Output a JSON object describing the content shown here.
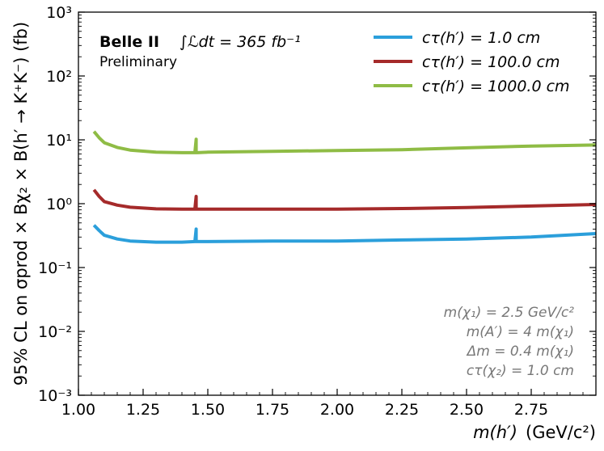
{
  "chart_data": {
    "type": "line",
    "xlabel_main": "m(h′)",
    "xlabel_unit": "(GeV/c²)",
    "ylabel": "95% CL on σprod × Bχ₂ × B(h′ → K⁺K⁻) (fb)",
    "xlim": [
      1.0,
      3.0
    ],
    "ylim": [
      0.001,
      1000
    ],
    "yscale": "log",
    "x_ticks": [
      "1.00",
      "1.25",
      "1.50",
      "1.75",
      "2.00",
      "2.25",
      "2.50",
      "2.75"
    ],
    "x_tick_values": [
      1.0,
      1.25,
      1.5,
      1.75,
      2.0,
      2.25,
      2.5,
      2.75
    ],
    "y_ticks": [
      "10⁻³",
      "10⁻²",
      "10⁻¹",
      "10⁰",
      "10¹",
      "10²",
      "10³"
    ],
    "y_tick_values": [
      0.001,
      0.01,
      0.1,
      1,
      10,
      100,
      1000
    ],
    "legend_position": "top-right",
    "series": [
      {
        "name": "cτ(h′) = 1.0 cm",
        "color": "#2b9fdb",
        "x": [
          1.06,
          1.08,
          1.1,
          1.15,
          1.2,
          1.3,
          1.4,
          1.45,
          1.455,
          1.455,
          1.46,
          1.5,
          1.75,
          2.0,
          2.25,
          2.5,
          2.75,
          3.0
        ],
        "y": [
          0.46,
          0.38,
          0.32,
          0.28,
          0.26,
          0.25,
          0.25,
          0.255,
          0.4,
          0.255,
          0.255,
          0.255,
          0.26,
          0.26,
          0.27,
          0.28,
          0.3,
          0.34
        ]
      },
      {
        "name": "cτ(h′) = 100.0 cm",
        "color": "#a52a2a",
        "x": [
          1.06,
          1.08,
          1.1,
          1.15,
          1.2,
          1.3,
          1.4,
          1.45,
          1.455,
          1.455,
          1.46,
          1.5,
          1.75,
          2.0,
          2.25,
          2.5,
          2.75,
          3.0
        ],
        "y": [
          1.65,
          1.3,
          1.08,
          0.95,
          0.88,
          0.83,
          0.82,
          0.82,
          1.3,
          0.82,
          0.82,
          0.82,
          0.82,
          0.82,
          0.84,
          0.87,
          0.92,
          0.97
        ]
      },
      {
        "name": "cτ(h′) = 1000.0 cm",
        "color": "#8fbc45",
        "x": [
          1.06,
          1.08,
          1.1,
          1.15,
          1.2,
          1.3,
          1.4,
          1.45,
          1.455,
          1.455,
          1.46,
          1.5,
          1.75,
          2.0,
          2.25,
          2.5,
          2.75,
          3.0
        ],
        "y": [
          13.5,
          10.8,
          9.0,
          7.6,
          6.9,
          6.4,
          6.3,
          6.3,
          10.2,
          6.3,
          6.3,
          6.4,
          6.6,
          6.8,
          7.0,
          7.5,
          8.0,
          8.3
        ]
      }
    ],
    "experiment": "Belle II",
    "luminosity": "∫ℒdt = 365 fb⁻¹",
    "status": "Preliminary",
    "annotations": [
      "m(χ₁) = 2.5 GeV/c²",
      "m(A′) = 4 m(χ₁)",
      "Δm = 0.4 m(χ₁)",
      "cτ(χ₂) = 1.0 cm"
    ]
  }
}
